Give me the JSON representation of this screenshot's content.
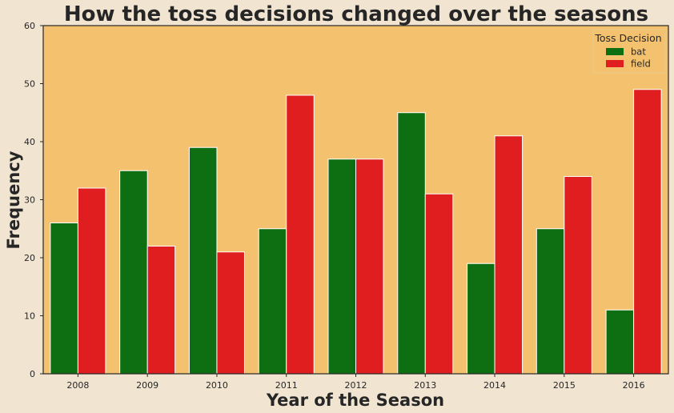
{
  "colors": {
    "page_background": "#f1e5d2",
    "plot_background": "#f4c26f",
    "bat": "#0e6f12",
    "field": "#e01e1f",
    "axes": "#262626"
  },
  "chart_data": {
    "type": "bar",
    "title": "How the toss decisions changed over the seasons",
    "xlabel": "Year of the Season",
    "ylabel": "Frequency",
    "categories": [
      "2008",
      "2009",
      "2010",
      "2011",
      "2012",
      "2013",
      "2014",
      "2015",
      "2016"
    ],
    "series": [
      {
        "name": "bat",
        "color": "#0e6f12",
        "values": [
          26,
          35,
          39,
          25,
          37,
          45,
          19,
          25,
          11
        ]
      },
      {
        "name": "field",
        "color": "#e01e1f",
        "values": [
          32,
          22,
          21,
          48,
          37,
          31,
          41,
          34,
          49
        ]
      }
    ],
    "ylim": [
      0,
      60
    ],
    "yticks": [
      0,
      10,
      20,
      30,
      40,
      50,
      60
    ],
    "grid": false,
    "legend": {
      "title": "Toss Decision",
      "placement": "top-right"
    }
  }
}
